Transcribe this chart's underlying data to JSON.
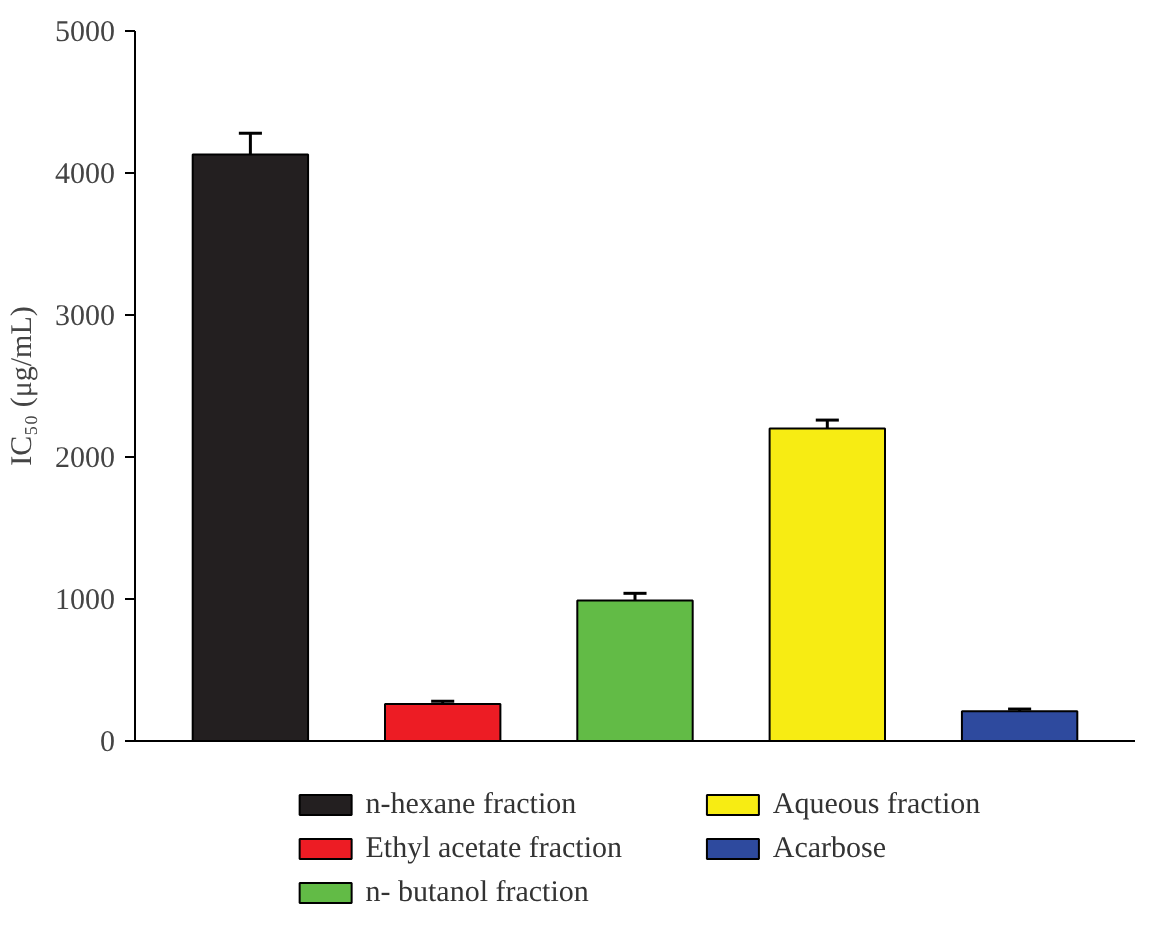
{
  "chart_data": {
    "type": "bar",
    "ylabel": "IC₅₀ (μg/mL)",
    "categories": [
      null,
      null,
      null,
      null,
      null
    ],
    "series": [
      {
        "name": "n-hexane fraction",
        "color": "#231f20",
        "values": [
          4130,
          null,
          null,
          null,
          null
        ],
        "errors": [
          150,
          null,
          null,
          null,
          null
        ]
      },
      {
        "name": "Ethyl acetate fraction",
        "color": "#ed1c24",
        "values": [
          null,
          260,
          null,
          null,
          null
        ],
        "errors": [
          null,
          20,
          null,
          null,
          null
        ]
      },
      {
        "name": "n- butanol fraction",
        "color": "#62bb46",
        "values": [
          null,
          null,
          990,
          null,
          null
        ],
        "errors": [
          null,
          null,
          50,
          null,
          null
        ]
      },
      {
        "name": "Aqueous fraction",
        "color": "#f7ec13",
        "values": [
          null,
          null,
          null,
          2200,
          null
        ],
        "errors": [
          null,
          null,
          null,
          60,
          null
        ]
      },
      {
        "name": "Acarbose",
        "color": "#2e4a9e",
        "values": [
          null,
          null,
          null,
          null,
          210
        ],
        "errors": [
          null,
          null,
          null,
          null,
          15
        ]
      }
    ],
    "ylim": [
      0,
      5000
    ],
    "yticks": [
      0,
      1000,
      2000,
      3000,
      4000,
      5000
    ],
    "grid": false,
    "legend": "bottom",
    "tick_labels": "y"
  }
}
